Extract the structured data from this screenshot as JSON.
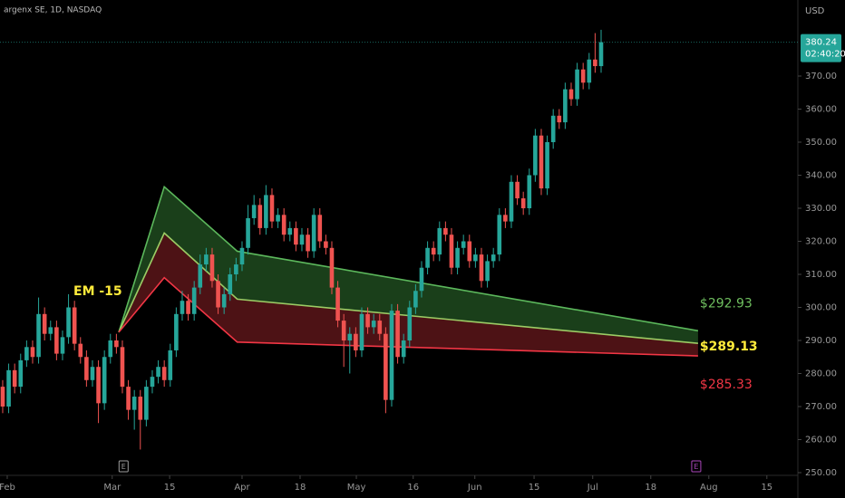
{
  "chart_data": {
    "type": "candlestick",
    "title": "argenx SE, 1D, NASDAQ",
    "currency": "USD",
    "last_price": 380.24,
    "countdown": "02:40:20",
    "annotation": "EM -15",
    "up_color": "#26a69a",
    "down_color": "#ef5350",
    "xlim": [
      -0.45,
      132.88
    ],
    "ylim": [
      249.18,
      393.01
    ],
    "xticks": [
      {
        "value": 0.76,
        "label": "Feb"
      },
      {
        "value": 18.3,
        "label": "Mar"
      },
      {
        "value": 27.9,
        "label": "15"
      },
      {
        "value": 40,
        "label": "Apr"
      },
      {
        "value": 49.7,
        "label": "18"
      },
      {
        "value": 59.1,
        "label": "May"
      },
      {
        "value": 68.6,
        "label": "16"
      },
      {
        "value": 78.9,
        "label": "Jun"
      },
      {
        "value": 88.8,
        "label": "15"
      },
      {
        "value": 98.6,
        "label": "Jul"
      },
      {
        "value": 108.3,
        "label": "18"
      },
      {
        "value": 118,
        "label": "Aug"
      },
      {
        "value": 127.7,
        "label": "15"
      }
    ],
    "yticks": [
      {
        "value": 250,
        "label": "250.00"
      },
      {
        "value": 260,
        "label": "260.00"
      },
      {
        "value": 270,
        "label": "270.00"
      },
      {
        "value": 280,
        "label": "280.00"
      },
      {
        "value": 290,
        "label": "290.00"
      },
      {
        "value": 300,
        "label": "300.00"
      },
      {
        "value": 310,
        "label": "310.00"
      },
      {
        "value": 320,
        "label": "320.00"
      },
      {
        "value": 330,
        "label": "330.00"
      },
      {
        "value": 340,
        "label": "340.00"
      },
      {
        "value": 350,
        "label": "350.00"
      },
      {
        "value": 360,
        "label": "360.00"
      },
      {
        "value": 370,
        "label": "370.00"
      }
    ],
    "open": [
      276,
      270,
      281,
      276,
      284,
      288,
      285,
      298,
      292,
      294,
      286,
      291,
      300,
      289,
      285,
      278,
      282,
      271,
      285,
      290,
      288,
      276,
      269,
      273,
      266,
      276,
      279,
      282,
      278,
      287,
      298,
      302,
      298,
      306,
      313,
      316,
      308,
      300,
      304,
      310,
      313,
      318,
      327,
      331,
      324,
      334,
      326,
      328,
      322,
      324,
      319,
      322,
      317,
      328,
      320,
      318,
      306,
      296,
      290,
      292,
      287,
      298,
      294,
      296,
      292,
      272,
      299,
      285,
      290,
      300,
      305,
      312,
      318,
      316,
      324,
      322,
      312,
      318,
      320,
      314,
      316,
      308,
      314,
      316,
      328,
      326,
      338,
      333,
      330,
      340,
      352,
      336,
      350,
      358,
      356,
      366,
      363,
      372,
      368,
      375,
      373
    ],
    "high": [
      278,
      283,
      283,
      286,
      290,
      290,
      303,
      300,
      296,
      296,
      293,
      304,
      302,
      291,
      287,
      284,
      284,
      287,
      292,
      292,
      290,
      278,
      275,
      275,
      278,
      281,
      284,
      284,
      289,
      300,
      305,
      304,
      308,
      316,
      318,
      318,
      310,
      306,
      312,
      315,
      320,
      331,
      334,
      333,
      337,
      336,
      330,
      330,
      326,
      326,
      324,
      324,
      330,
      330,
      322,
      320,
      308,
      298,
      294,
      294,
      300,
      300,
      298,
      298,
      294,
      301,
      301,
      292,
      302,
      307,
      314,
      320,
      320,
      326,
      326,
      324,
      320,
      322,
      322,
      318,
      318,
      316,
      318,
      330,
      330,
      340,
      340,
      335,
      342,
      354,
      354,
      352,
      360,
      360,
      368,
      368,
      374,
      374,
      377,
      383,
      384
    ],
    "low": [
      268,
      268,
      274,
      274,
      282,
      283,
      283,
      290,
      290,
      284,
      284,
      289,
      287,
      283,
      276,
      276,
      265,
      269,
      283,
      286,
      274,
      266,
      263,
      257,
      264,
      274,
      277,
      276,
      276,
      285,
      296,
      296,
      296,
      304,
      311,
      306,
      298,
      298,
      302,
      308,
      311,
      316,
      325,
      322,
      322,
      324,
      324,
      320,
      320,
      317,
      317,
      315,
      315,
      318,
      316,
      304,
      294,
      282,
      280,
      285,
      285,
      292,
      292,
      290,
      268,
      270,
      283,
      283,
      288,
      298,
      303,
      310,
      314,
      314,
      320,
      310,
      310,
      316,
      312,
      312,
      306,
      306,
      312,
      314,
      324,
      324,
      331,
      328,
      328,
      338,
      334,
      334,
      348,
      354,
      354,
      361,
      361,
      366,
      366,
      371,
      371
    ],
    "close": [
      270,
      281,
      276,
      284,
      288,
      285,
      298,
      292,
      294,
      286,
      291,
      300,
      289,
      285,
      278,
      282,
      271,
      285,
      290,
      288,
      276,
      269,
      273,
      266,
      276,
      279,
      282,
      278,
      287,
      298,
      302,
      298,
      306,
      313,
      316,
      308,
      300,
      304,
      310,
      313,
      318,
      327,
      331,
      324,
      334,
      326,
      328,
      322,
      324,
      319,
      322,
      317,
      328,
      320,
      318,
      306,
      296,
      290,
      292,
      287,
      298,
      294,
      296,
      292,
      272,
      299,
      285,
      290,
      300,
      305,
      312,
      318,
      316,
      324,
      322,
      312,
      318,
      320,
      314,
      316,
      308,
      314,
      316,
      328,
      326,
      338,
      333,
      330,
      340,
      352,
      336,
      350,
      358,
      356,
      366,
      363,
      372,
      368,
      375,
      373,
      380.24
    ],
    "bands": [
      {
        "color": "#5cb85c",
        "label_color": "#6fbf5f",
        "x": [
          19.4,
          27,
          39.2,
          116.2
        ],
        "values": [
          292.5,
          336.5,
          317,
          292.93
        ],
        "value_labels": [
          null,
          null,
          null,
          "$292.93"
        ]
      },
      {
        "color": "#9ccc65",
        "label_color": "#ffeb3b",
        "x": [
          19.4,
          27,
          39.2,
          116.2
        ],
        "values": [
          292.5,
          322.5,
          302.5,
          289.13
        ],
        "value_labels": [
          null,
          null,
          null,
          "$289.13"
        ]
      },
      {
        "color": "#f23645",
        "label_color": "#f23645",
        "x": [
          19.4,
          27,
          39.2,
          116.2
        ],
        "values": [
          292.5,
          309,
          289.5,
          285.33
        ],
        "value_labels": [
          null,
          null,
          null,
          "$285.33"
        ]
      }
    ],
    "band_fills": [
      "#1f4a1f",
      "#5a1519"
    ],
    "events": [
      {
        "label": "E",
        "x": 20.2,
        "color": "#9e9e9e"
      },
      {
        "label": "E",
        "x": 115.9,
        "color": "#ab47bc"
      }
    ]
  }
}
